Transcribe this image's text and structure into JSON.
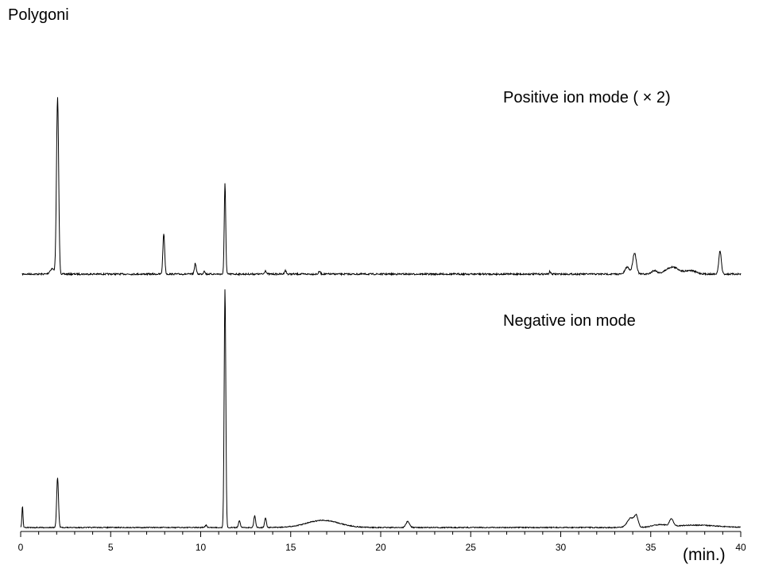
{
  "title": "Polygoni",
  "xunit": "(min.)",
  "chart_data": {
    "type": "line",
    "title": "Polygoni",
    "xlabel": "(min.)",
    "ylabel": "",
    "xlim": [
      0,
      40
    ],
    "x_ticks": [
      0,
      5,
      10,
      15,
      20,
      25,
      30,
      35,
      40
    ],
    "x_tick_labels": [
      "0",
      "5",
      "10",
      "15",
      "20",
      "25",
      "30",
      "35",
      "40"
    ],
    "grid": false,
    "series": [
      {
        "name": "Positive ion mode (×2)",
        "label": "Positive ion mode ( × 2)",
        "color": "#000000",
        "baseline": 0,
        "peaks": [
          {
            "rt": 1.75,
            "height": 3,
            "width": 0.12
          },
          {
            "rt": 2.05,
            "height": 100,
            "width": 0.06
          },
          {
            "rt": 7.95,
            "height": 23,
            "width": 0.05
          },
          {
            "rt": 9.7,
            "height": 6,
            "width": 0.05
          },
          {
            "rt": 10.2,
            "height": 2,
            "width": 0.04
          },
          {
            "rt": 11.35,
            "height": 52,
            "width": 0.04
          },
          {
            "rt": 13.6,
            "height": 2,
            "width": 0.05
          },
          {
            "rt": 14.7,
            "height": 2,
            "width": 0.05
          },
          {
            "rt": 16.6,
            "height": 1.5,
            "width": 0.05
          },
          {
            "rt": 29.4,
            "height": 1.5,
            "width": 0.04
          },
          {
            "rt": 33.7,
            "height": 4,
            "width": 0.12
          },
          {
            "rt": 34.1,
            "height": 12,
            "width": 0.1
          },
          {
            "rt": 35.2,
            "height": 2,
            "width": 0.15
          },
          {
            "rt": 36.2,
            "height": 4,
            "width": 0.35
          },
          {
            "rt": 37.2,
            "height": 2,
            "width": 0.3
          },
          {
            "rt": 38.85,
            "height": 13,
            "width": 0.07
          }
        ]
      },
      {
        "name": "Negative ion mode",
        "label": "Negative ion mode",
        "color": "#000000",
        "baseline": 0,
        "peaks": [
          {
            "rt": 0.1,
            "height": 9,
            "width": 0.03
          },
          {
            "rt": 2.05,
            "height": 21,
            "width": 0.05
          },
          {
            "rt": 10.3,
            "height": 1,
            "width": 0.05
          },
          {
            "rt": 11.35,
            "height": 100,
            "width": 0.045
          },
          {
            "rt": 12.15,
            "height": 3,
            "width": 0.05
          },
          {
            "rt": 13.0,
            "height": 5,
            "width": 0.05
          },
          {
            "rt": 13.6,
            "height": 4,
            "width": 0.05
          },
          {
            "rt": 16.8,
            "height": 3,
            "width": 0.9
          },
          {
            "rt": 21.5,
            "height": 2.5,
            "width": 0.1
          },
          {
            "rt": 33.9,
            "height": 4,
            "width": 0.2
          },
          {
            "rt": 34.2,
            "height": 4,
            "width": 0.1
          },
          {
            "rt": 35.5,
            "height": 1,
            "width": 0.4
          },
          {
            "rt": 36.15,
            "height": 3,
            "width": 0.1
          },
          {
            "rt": 37.5,
            "height": 1,
            "width": 1.2
          }
        ]
      }
    ]
  }
}
